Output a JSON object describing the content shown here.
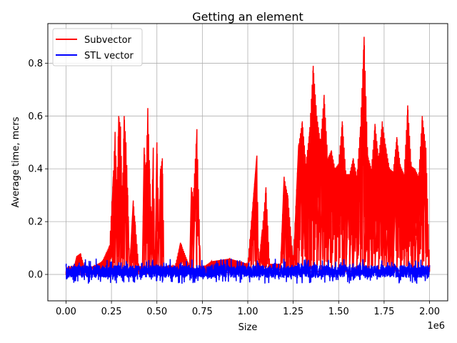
{
  "chart_data": {
    "type": "line",
    "title": "Getting an element",
    "xlabel": "Size",
    "ylabel": "Average time, mcrs",
    "x_offset_text": "1e6",
    "xlim": [
      -100000,
      2100000
    ],
    "ylim": [
      -0.1,
      0.95
    ],
    "x_ticks": [
      0,
      250000,
      500000,
      750000,
      1000000,
      1250000,
      1500000,
      1750000,
      2000000
    ],
    "x_tick_labels": [
      "0.00",
      "0.25",
      "0.50",
      "0.75",
      "1.00",
      "1.25",
      "1.50",
      "1.75",
      "2.00"
    ],
    "y_ticks": [
      0.0,
      0.2,
      0.4,
      0.6,
      0.8
    ],
    "y_tick_labels": [
      "0.0",
      "0.2",
      "0.4",
      "0.6",
      "0.8"
    ],
    "grid": true,
    "legend_position": "upper-left",
    "series": [
      {
        "name": "Subvector",
        "color": "#ff0000",
        "x": [
          0,
          20000,
          40000,
          60000,
          80000,
          100000,
          150000,
          200000,
          240000,
          260000,
          270000,
          280000,
          290000,
          300000,
          310000,
          320000,
          330000,
          340000,
          350000,
          370000,
          380000,
          400000,
          420000,
          430000,
          440000,
          450000,
          460000,
          470000,
          480000,
          490000,
          500000,
          510000,
          520000,
          530000,
          540000,
          560000,
          600000,
          630000,
          680000,
          690000,
          700000,
          720000,
          740000,
          760000,
          800000,
          900000,
          1000000,
          1050000,
          1060000,
          1080000,
          1100000,
          1120000,
          1150000,
          1180000,
          1200000,
          1210000,
          1220000,
          1250000,
          1280000,
          1300000,
          1320000,
          1340000,
          1360000,
          1380000,
          1400000,
          1420000,
          1440000,
          1460000,
          1480000,
          1500000,
          1520000,
          1540000,
          1560000,
          1580000,
          1600000,
          1620000,
          1640000,
          1660000,
          1680000,
          1700000,
          1720000,
          1740000,
          1760000,
          1780000,
          1800000,
          1820000,
          1840000,
          1860000,
          1880000,
          1900000,
          1920000,
          1940000,
          1960000,
          1980000,
          2000000
        ],
        "y": [
          0.0,
          0.02,
          0.01,
          0.07,
          0.08,
          0.03,
          0.03,
          0.05,
          0.11,
          0.37,
          0.54,
          0.33,
          0.6,
          0.56,
          0.3,
          0.6,
          0.5,
          0.3,
          0.02,
          0.28,
          0.2,
          0.03,
          0.03,
          0.48,
          0.39,
          0.63,
          0.4,
          0.2,
          0.48,
          0.03,
          0.5,
          0.2,
          0.4,
          0.44,
          0.03,
          0.03,
          0.03,
          0.12,
          0.03,
          0.33,
          0.29,
          0.55,
          0.02,
          0.03,
          0.05,
          0.06,
          0.04,
          0.45,
          0.04,
          0.17,
          0.33,
          0.04,
          0.04,
          0.04,
          0.37,
          0.33,
          0.3,
          0.05,
          0.49,
          0.58,
          0.42,
          0.54,
          0.79,
          0.6,
          0.5,
          0.68,
          0.44,
          0.47,
          0.4,
          0.42,
          0.58,
          0.38,
          0.38,
          0.44,
          0.37,
          0.56,
          0.9,
          0.45,
          0.4,
          0.57,
          0.44,
          0.58,
          0.48,
          0.4,
          0.39,
          0.52,
          0.41,
          0.38,
          0.64,
          0.41,
          0.4,
          0.37,
          0.6,
          0.48,
          0.03
        ],
        "noise_band": [
          0.0,
          0.4
        ]
      },
      {
        "name": "STL vector",
        "color": "#0000ff",
        "x": [
          0,
          2000000
        ],
        "y": [
          0.01,
          0.01
        ],
        "noise_band": [
          -0.045,
          0.05
        ]
      }
    ]
  }
}
